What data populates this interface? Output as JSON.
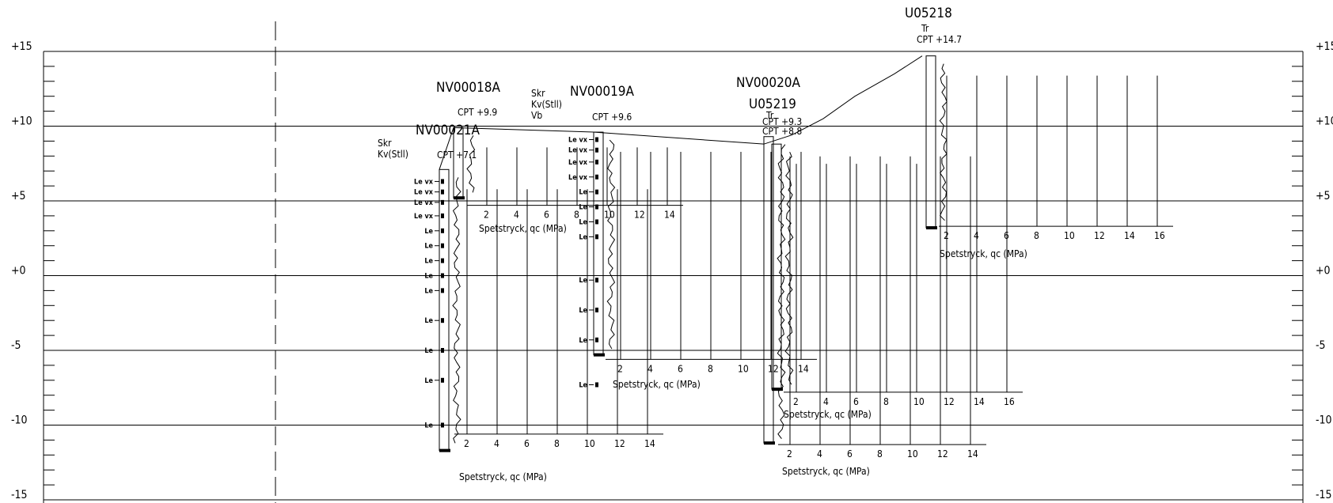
{
  "elevation_labels": [
    "+15",
    "+10",
    "+5",
    "+0",
    "-5",
    "-10",
    "-15"
  ],
  "elevation_values": [
    15,
    10,
    5,
    0,
    -5,
    -10,
    -15
  ],
  "axis_title": "Spetstryck, qc (MPa)",
  "boreholes": [
    {
      "id": "NV00021A",
      "cpt_label": "CPT  +7.1",
      "top_level": 7.1,
      "strata": [
        "Skr",
        "Kv(Stll)"
      ],
      "soil_labels": [
        "Le vx",
        "Le vx",
        "Le vx",
        "Le vx",
        "Le",
        "Le",
        "Le",
        "Le",
        "Le",
        "Le",
        "Le",
        "Le",
        "Le"
      ],
      "soil_levels": [
        6.3,
        5.6,
        4.9,
        4.0,
        3.0,
        2.0,
        1.0,
        0.0,
        -1.0,
        -3.0,
        -5.0,
        -7.0,
        -10.0
      ],
      "bottom_level": -11.7,
      "ticks": [
        "2",
        "4",
        "6",
        "8",
        "10",
        "12",
        "14"
      ],
      "tick_values": [
        2,
        4,
        6,
        8,
        10,
        12,
        14
      ]
    },
    {
      "id": "NV00018A",
      "cpt_label": "CPT  +9.9",
      "top_level": 9.9,
      "strata": [],
      "soil_labels": [],
      "soil_levels": [],
      "bottom_level": 5.2,
      "ticks": [
        "2",
        "4",
        "6",
        "8",
        "10",
        "12",
        "14"
      ],
      "tick_values": [
        2,
        4,
        6,
        8,
        10,
        12,
        14
      ]
    },
    {
      "id": "NV00019A",
      "cpt_label": "CPT  +9.6",
      "top_level": 9.6,
      "strata": [
        "Skr",
        "Kv(Stll)",
        "Vb"
      ],
      "soil_labels": [
        "Le vx",
        "Le vx",
        "Le vx",
        "Le vx",
        "Le",
        "Le",
        "Le",
        "Le",
        "Le",
        "Le",
        "Le",
        "Le"
      ],
      "soil_levels": [
        9.1,
        8.4,
        7.6,
        6.6,
        5.6,
        4.6,
        3.6,
        2.6,
        -0.3,
        -2.3,
        -4.3,
        -7.3
      ],
      "bottom_level": -5.3,
      "ticks": [
        "2",
        "4",
        "6",
        "8",
        "10",
        "12",
        "14"
      ],
      "tick_values": [
        2,
        4,
        6,
        8,
        10,
        12,
        14
      ]
    },
    {
      "id": "NV00020A",
      "cpt_label": "CPT  +9.3",
      "top_level": 9.3,
      "strata": [
        "Tr"
      ],
      "soil_labels": [],
      "soil_levels": [],
      "bottom_level": -11.2,
      "ticks": [
        "2",
        "4",
        "6",
        "8",
        "10",
        "12",
        "14"
      ],
      "tick_values": [
        2,
        4,
        6,
        8,
        10,
        12,
        14
      ]
    },
    {
      "id": "U05219",
      "cpt_label": "CPT  +8.8",
      "top_level": 8.8,
      "strata": [],
      "soil_labels": [],
      "soil_levels": [],
      "bottom_level": -7.6,
      "ticks": [
        "2",
        "4",
        "6",
        "8",
        "10",
        "12",
        "14",
        "16"
      ],
      "tick_values": [
        2,
        4,
        6,
        8,
        10,
        12,
        14,
        16
      ]
    },
    {
      "id": "U05218",
      "cpt_label": "CPT  +14.7",
      "top_level": 14.7,
      "strata": [
        "Tr"
      ],
      "soil_labels": [],
      "soil_levels": [],
      "bottom_level": 3.2,
      "ticks": [
        "2",
        "4",
        "6",
        "8",
        "10",
        "12",
        "14",
        "16"
      ],
      "tick_values": [
        2,
        4,
        6,
        8,
        10,
        12,
        14,
        16
      ]
    }
  ],
  "ground_profile": {
    "x_label": "",
    "levels": [
      7.1,
      9.9,
      9.6,
      8.8,
      9.4,
      10.5,
      12.0,
      13.5,
      14.7
    ]
  }
}
